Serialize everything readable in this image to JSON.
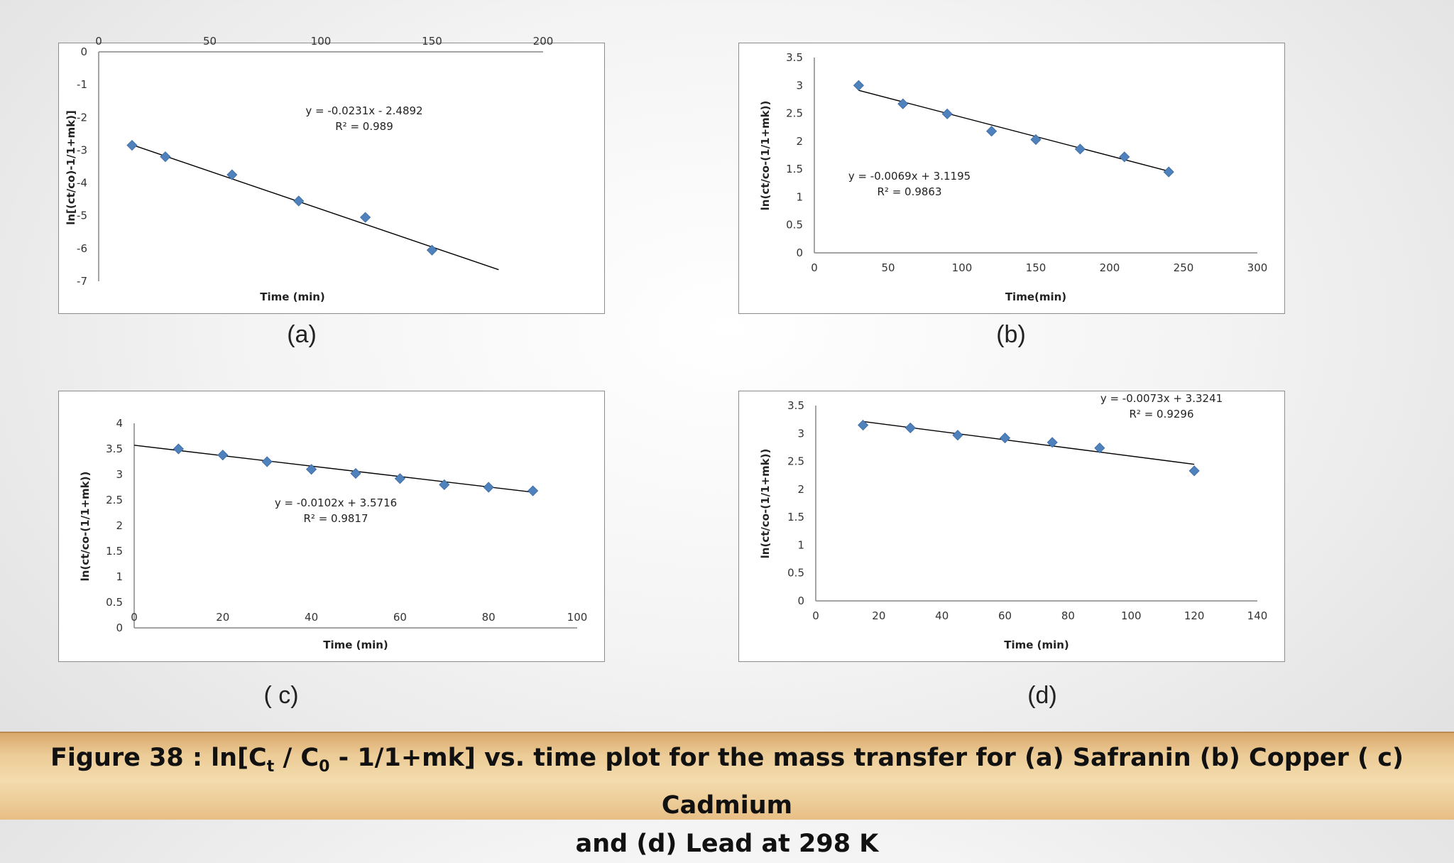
{
  "figure_caption": {
    "prefix": "Figure 38 :  ln[C",
    "sub1": "t",
    "mid": " / C",
    "sub2": "0",
    "rest1": " - 1/1+mk] vs. time plot for the mass transfer for (a) Safranin (b) Copper ( c) Cadmium",
    "line2": "and (d) Lead at 298 K"
  },
  "colors": {
    "marker": "#4f81bd",
    "trendline": "#000000",
    "axis": "#868686",
    "banner": "#e8c48f"
  },
  "chart_data": [
    {
      "id": "a",
      "caption": "(a)",
      "type": "scatter",
      "xlabel": "Time (min)",
      "ylabel": "ln[(ct/co)-1/1+mk)]",
      "xlim": [
        0,
        200
      ],
      "ylim": [
        -7,
        0
      ],
      "xticks": [
        0,
        50,
        100,
        150,
        200
      ],
      "yticks": [
        0,
        -1,
        -2,
        -3,
        -4,
        -5,
        -6,
        -7
      ],
      "x_axis_position": "top",
      "points": [
        [
          15,
          -2.85
        ],
        [
          30,
          -3.2
        ],
        [
          60,
          -3.75
        ],
        [
          90,
          -4.55
        ],
        [
          120,
          -5.05
        ],
        [
          150,
          -6.05
        ]
      ],
      "trend_x": [
        15,
        180
      ],
      "equation": "y = -0.0231x - 2.4892",
      "r2": "R² = 0.989",
      "grid": false
    },
    {
      "id": "b",
      "caption": "(b)",
      "type": "scatter",
      "xlabel": "Time(min)",
      "ylabel": "ln(ct/co-(1/1+mk))",
      "xlim": [
        0,
        300
      ],
      "ylim": [
        0,
        3.5
      ],
      "xticks": [
        0,
        50,
        100,
        150,
        200,
        250,
        300
      ],
      "yticks": [
        0,
        0.5,
        1,
        1.5,
        2,
        2.5,
        3,
        3.5
      ],
      "x_axis_position": "bottom",
      "points": [
        [
          30,
          3.0
        ],
        [
          60,
          2.67
        ],
        [
          90,
          2.49
        ],
        [
          120,
          2.18
        ],
        [
          150,
          2.03
        ],
        [
          180,
          1.86
        ],
        [
          210,
          1.72
        ],
        [
          240,
          1.45
        ]
      ],
      "trend_x": [
        30,
        240
      ],
      "equation": "y = -0.0069x + 3.1195",
      "r2": "R² = 0.9863",
      "grid": false
    },
    {
      "id": "c",
      "caption": "( c)",
      "type": "scatter",
      "xlabel": "Time (min)",
      "ylabel": "ln(ct/co-(1/1+mk))",
      "xlim": [
        0,
        100
      ],
      "ylim": [
        0,
        4
      ],
      "xticks": [
        0,
        20,
        40,
        60,
        80,
        100
      ],
      "yticks": [
        0,
        0.5,
        1,
        1.5,
        2,
        2.5,
        3,
        3.5,
        4
      ],
      "x_axis_position": "top",
      "points": [
        [
          10,
          3.5
        ],
        [
          20,
          3.38
        ],
        [
          30,
          3.25
        ],
        [
          40,
          3.1
        ],
        [
          50,
          3.02
        ],
        [
          60,
          2.92
        ],
        [
          70,
          2.8
        ],
        [
          80,
          2.75
        ],
        [
          90,
          2.68
        ]
      ],
      "trend_x": [
        0,
        90
      ],
      "equation": "y = -0.0102x + 3.5716",
      "r2": "R² = 0.9817",
      "grid": false
    },
    {
      "id": "d",
      "caption": "(d)",
      "type": "scatter",
      "xlabel": "Time (min)",
      "ylabel": "ln(ct/co-(1/1+mk))",
      "xlim": [
        0,
        140
      ],
      "ylim": [
        0,
        3.5
      ],
      "xticks": [
        0,
        20,
        40,
        60,
        80,
        100,
        120,
        140
      ],
      "yticks": [
        0,
        0.5,
        1,
        1.5,
        2,
        2.5,
        3,
        3.5
      ],
      "x_axis_position": "bottom",
      "points": [
        [
          15,
          3.15
        ],
        [
          30,
          3.1
        ],
        [
          45,
          2.97
        ],
        [
          60,
          2.92
        ],
        [
          75,
          2.84
        ],
        [
          90,
          2.74
        ],
        [
          120,
          2.33
        ]
      ],
      "trend_x": [
        15,
        120
      ],
      "equation": "y = -0.0073x + 3.3241",
      "r2": "R² = 0.9296",
      "grid": false
    }
  ]
}
